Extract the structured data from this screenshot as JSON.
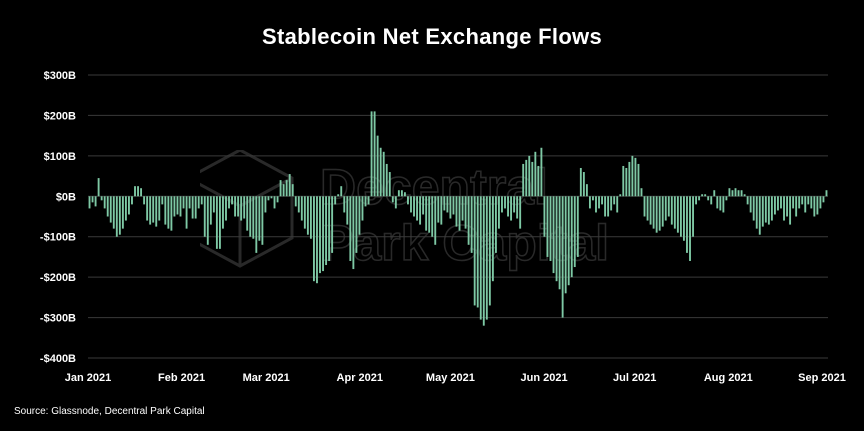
{
  "title": "Stablecoin Net Exchange Flows",
  "source": "Source: Glassnode, Decentral Park Capital",
  "watermark": {
    "line1": "Decentral",
    "line2": "Park Capital"
  },
  "colors": {
    "background": "#000000",
    "bar": "#7ec9a5",
    "grid": "#3a3a3a",
    "text": "#ffffff"
  },
  "chart_data": {
    "type": "bar",
    "title": "Stablecoin Net Exchange Flows",
    "xlabel": "",
    "ylabel": "",
    "ylim": [
      -400,
      300
    ],
    "y_unit": "billions USD",
    "grid": true,
    "legend": "none",
    "y_ticks": [
      300,
      200,
      100,
      0,
      -100,
      -200,
      -300,
      -400
    ],
    "y_tick_labels": [
      "$300B",
      "$200B",
      "$100B",
      "$0B",
      "-$100B",
      "-$200B",
      "-$300B",
      "-$400B"
    ],
    "x_start": "2021-01-01",
    "x_end": "2021-09-03",
    "x_ticks": [
      {
        "label": "Jan 2021",
        "date": "2021-01-01"
      },
      {
        "label": "Feb 2021",
        "date": "2021-02-01"
      },
      {
        "label": "Mar 2021",
        "date": "2021-03-01"
      },
      {
        "label": "Apr 2021",
        "date": "2021-04-01"
      },
      {
        "label": "May 2021",
        "date": "2021-05-01"
      },
      {
        "label": "Jun 2021",
        "date": "2021-06-01"
      },
      {
        "label": "Jul 2021",
        "date": "2021-07-01"
      },
      {
        "label": "Aug 2021",
        "date": "2021-08-01"
      },
      {
        "label": "Sep 2021",
        "date": "2021-09-01"
      }
    ],
    "values": [
      -30,
      -15,
      -25,
      45,
      -10,
      -30,
      -50,
      -65,
      -80,
      -100,
      -95,
      -80,
      -60,
      -45,
      -20,
      25,
      25,
      20,
      -20,
      -60,
      -70,
      -65,
      -75,
      -60,
      -20,
      -70,
      -80,
      -85,
      -50,
      -45,
      -50,
      -30,
      -80,
      -30,
      -55,
      -55,
      -30,
      -20,
      -100,
      -120,
      -70,
      -40,
      -130,
      -130,
      -80,
      -60,
      -30,
      -20,
      -50,
      -50,
      -60,
      -55,
      -85,
      -100,
      -105,
      -140,
      -110,
      -120,
      -40,
      -10,
      -5,
      -30,
      -15,
      40,
      30,
      40,
      55,
      30,
      -25,
      -40,
      -60,
      -80,
      -95,
      -105,
      -210,
      -215,
      -190,
      -185,
      -170,
      -160,
      -140,
      -20,
      5,
      25,
      -40,
      -70,
      -160,
      -180,
      -140,
      -95,
      -60,
      -25,
      -20,
      210,
      210,
      150,
      120,
      110,
      80,
      60,
      -15,
      -30,
      15,
      15,
      10,
      -20,
      -40,
      -50,
      -60,
      -70,
      -45,
      -85,
      -90,
      -100,
      -120,
      -65,
      -70,
      -35,
      -40,
      -55,
      -45,
      -75,
      -85,
      -60,
      -80,
      -120,
      -140,
      -270,
      -275,
      -305,
      -320,
      -305,
      -270,
      -210,
      -140,
      -80,
      -40,
      -30,
      -50,
      -60,
      -40,
      -55,
      -80,
      80,
      90,
      100,
      85,
      110,
      75,
      120,
      -100,
      -150,
      -160,
      -190,
      -210,
      -230,
      -300,
      -240,
      -220,
      -200,
      -175,
      -150,
      70,
      60,
      30,
      -30,
      -10,
      -40,
      -30,
      -20,
      -50,
      -50,
      -35,
      -20,
      -40,
      5,
      75,
      70,
      85,
      100,
      95,
      80,
      20,
      -50,
      -60,
      -70,
      -80,
      -90,
      -85,
      -75,
      -60,
      -50,
      -70,
      -80,
      -90,
      -100,
      -110,
      -140,
      -160,
      -100,
      -20,
      -10,
      5,
      5,
      -10,
      -20,
      15,
      -30,
      -35,
      -40,
      -10,
      20,
      15,
      20,
      15,
      15,
      5,
      -20,
      -40,
      -60,
      -80,
      -95,
      -75,
      -65,
      -70,
      -60,
      -45,
      -35,
      -30,
      -60,
      -50,
      -70,
      -30,
      -50,
      -30,
      -20,
      -40,
      -20,
      -30,
      -50,
      -45,
      -30,
      -15,
      15
    ]
  }
}
